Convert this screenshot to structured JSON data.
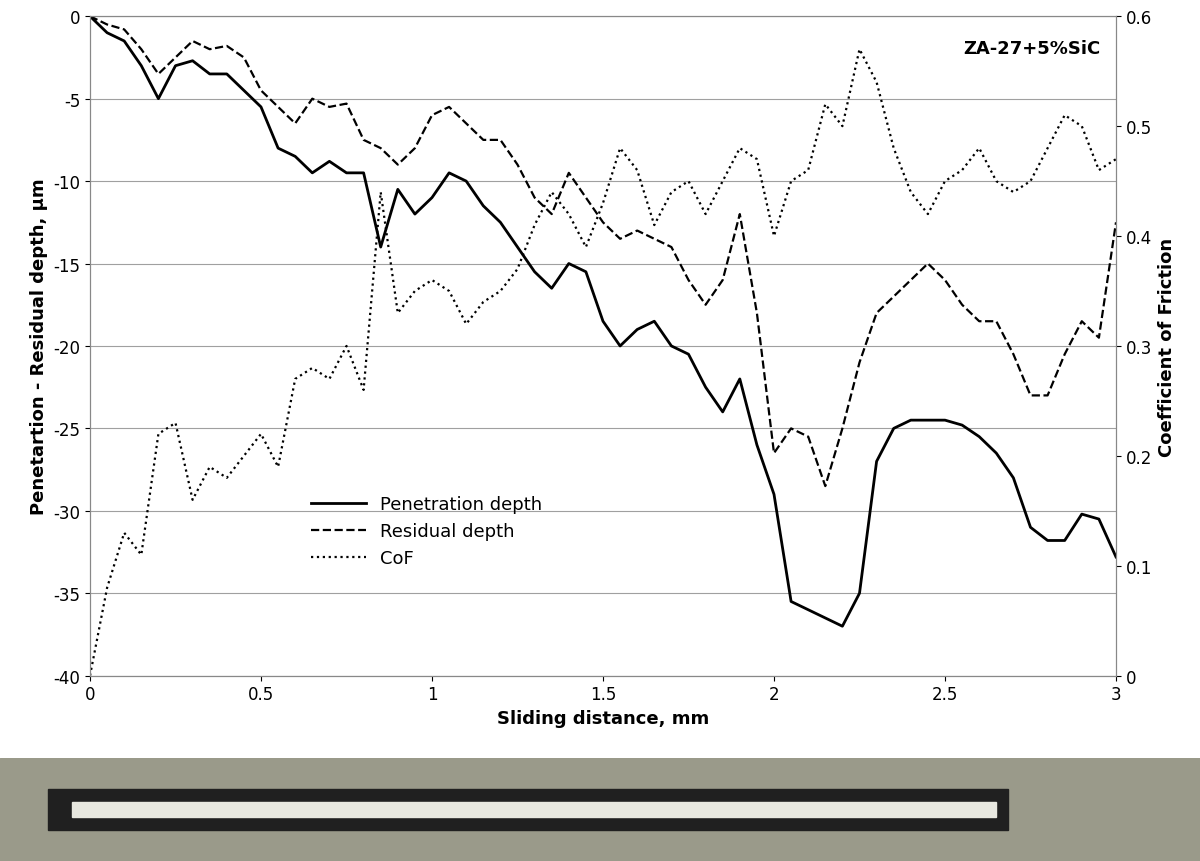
{
  "chart_data": {
    "type": "line",
    "xlabel": "Sliding distance, mm",
    "ylabel": "Penetartion - Residual depth, µm",
    "y2label": "Coefficient of Friction",
    "annotations": [
      "ZA-27+5%SiC"
    ],
    "x": [
      0,
      0.05,
      0.1,
      0.15,
      0.2,
      0.25,
      0.3,
      0.35,
      0.4,
      0.45,
      0.5,
      0.55,
      0.6,
      0.65,
      0.7,
      0.75,
      0.8,
      0.85,
      0.9,
      0.95,
      1,
      1.05,
      1.1,
      1.15,
      1.2,
      1.25,
      1.3,
      1.35,
      1.4,
      1.45,
      1.5,
      1.55,
      1.6,
      1.65,
      1.7,
      1.75,
      1.8,
      1.85,
      1.9,
      1.95,
      2,
      2.05,
      2.1,
      2.15,
      2.2,
      2.25,
      2.3,
      2.35,
      2.4,
      2.45,
      2.5,
      2.55,
      2.6,
      2.65,
      2.7,
      2.75,
      2.8,
      2.85,
      2.9,
      2.95,
      3
    ],
    "series": [
      {
        "name": "Penetration depth",
        "color": "#000000",
        "line_style": "solid",
        "values": [
          0,
          -1,
          -1.5,
          -3,
          -5,
          -3,
          -2.7,
          -3.5,
          -3.5,
          -4.5,
          -5.5,
          -8,
          -8.5,
          -9.5,
          -8.8,
          -9.5,
          -9.5,
          -14,
          -10.5,
          -12,
          -11,
          -9.5,
          -10,
          -11.5,
          -12.5,
          -14,
          -15.5,
          -16.5,
          -15,
          -15.5,
          -18.5,
          -20,
          -19,
          -18.5,
          -20,
          -20.5,
          -22.5,
          -24,
          -22,
          -26,
          -29,
          -35.5,
          -36,
          -36.5,
          -37,
          -35,
          -27,
          -25,
          -24.5,
          -24.5,
          -24.5,
          -24.8,
          -25.5,
          -26.5,
          -28,
          -31,
          -31.8,
          -31.8,
          -30.2,
          -30.5,
          -32.8
        ]
      },
      {
        "name": "Residual depth",
        "color": "#000000",
        "line_style": "dashed",
        "values": [
          0,
          -0.5,
          -0.8,
          -2,
          -3.5,
          -2.5,
          -1.5,
          -2,
          -1.8,
          -2.5,
          -4.5,
          -5.5,
          -6.5,
          -5,
          -5.5,
          -5.3,
          -7.5,
          -8,
          -9,
          -8,
          -6,
          -5.5,
          -6.5,
          -7.5,
          -7.5,
          -9,
          -11,
          -12,
          -9.5,
          -11,
          -12.5,
          -13.5,
          -13,
          -13.5,
          -14,
          -16,
          -17.5,
          -16,
          -12,
          -18,
          -26.5,
          -25,
          -25.5,
          -28.5,
          -25,
          -21,
          -18,
          -17,
          -16,
          -15,
          -16,
          -17.5,
          -18.5,
          -18.5,
          -20.5,
          -23,
          -23,
          -20.5,
          -18.5,
          -19.5,
          -12.5
        ]
      },
      {
        "name": "CoF",
        "color": "#000000",
        "line_style": "dotted",
        "axis": "y2",
        "values": [
          0,
          0.08,
          0.13,
          0.11,
          0.22,
          0.23,
          0.16,
          0.19,
          0.18,
          0.2,
          0.22,
          0.19,
          0.27,
          0.28,
          0.27,
          0.3,
          0.26,
          0.44,
          0.33,
          0.35,
          0.36,
          0.35,
          0.32,
          0.34,
          0.35,
          0.37,
          0.41,
          0.44,
          0.42,
          0.39,
          0.43,
          0.48,
          0.46,
          0.41,
          0.44,
          0.45,
          0.42,
          0.45,
          0.48,
          0.47,
          0.4,
          0.45,
          0.46,
          0.52,
          0.5,
          0.57,
          0.54,
          0.48,
          0.44,
          0.42,
          0.45,
          0.46,
          0.48,
          0.45,
          0.44,
          0.45,
          0.48,
          0.51,
          0.5,
          0.46,
          0.47
        ]
      }
    ],
    "xlim": [
      0,
      3
    ],
    "xticks": [
      0,
      0.5,
      1,
      1.5,
      2,
      2.5,
      3
    ],
    "ylim": [
      -40,
      0
    ],
    "yticks": [
      -40,
      -35,
      -30,
      -25,
      -20,
      -15,
      -10,
      -5,
      0
    ],
    "y2lim": [
      0,
      0.6
    ],
    "y2ticks": [
      0,
      0.1,
      0.2,
      0.3,
      0.4,
      0.5,
      0.6
    ],
    "grid": true,
    "legend": "lower left"
  }
}
